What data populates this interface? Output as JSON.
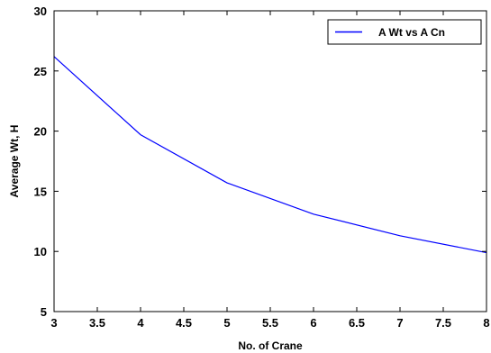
{
  "chart_data": {
    "type": "line",
    "title": "",
    "xlabel": "No. of Crane",
    "ylabel": "Average Wt, H",
    "xlim": [
      3,
      8
    ],
    "ylim": [
      5,
      30
    ],
    "xticks": [
      "3",
      "3.5",
      "4",
      "4.5",
      "5",
      "5.5",
      "6",
      "6.5",
      "7",
      "7.5",
      "8"
    ],
    "yticks": [
      "5",
      "10",
      "15",
      "20",
      "25",
      "30"
    ],
    "grid": false,
    "legend_position": "top-right",
    "series": [
      {
        "name": "A Wt vs A Cn",
        "color": "#0000ff",
        "x": [
          3,
          4,
          5,
          6,
          7,
          8
        ],
        "y": [
          26.2,
          19.7,
          15.7,
          13.1,
          11.3,
          9.9
        ]
      }
    ]
  }
}
